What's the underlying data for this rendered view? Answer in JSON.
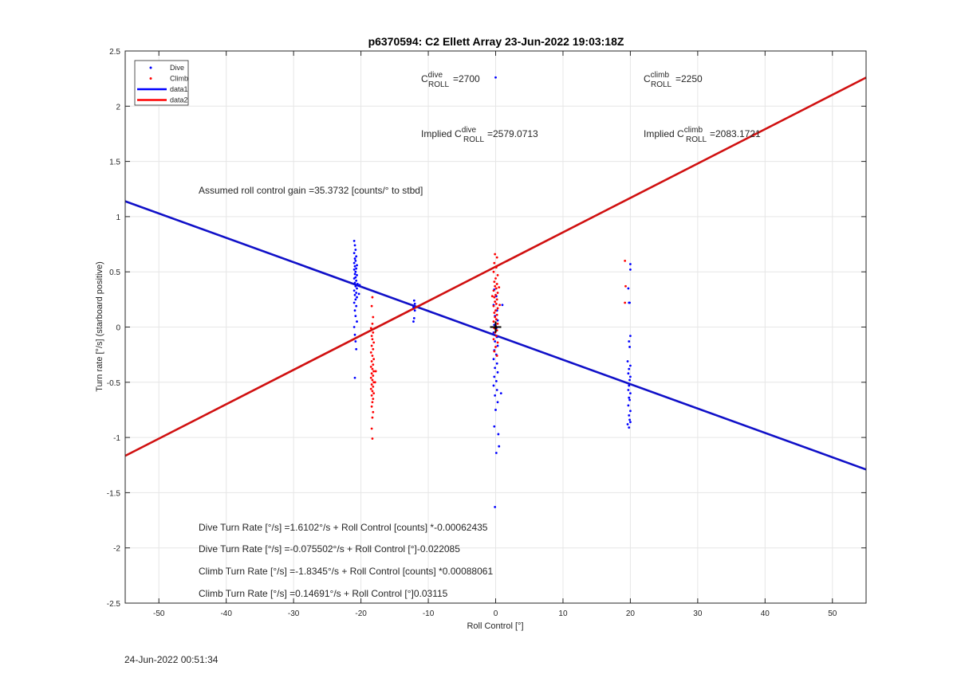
{
  "chart_data": {
    "type": "scatter",
    "title": "p6370594: C2 Ellett Array 23-Jun-2022 19:03:18Z",
    "xlabel": "Roll Control [°]",
    "ylabel": "Turn rate [°/s] (starboard positive)",
    "xlim": [
      -55,
      55
    ],
    "ylim": [
      -2.5,
      2.5
    ],
    "xticks": [
      -50,
      -40,
      -30,
      -20,
      -10,
      0,
      10,
      20,
      30,
      40,
      50
    ],
    "yticks": [
      -2.5,
      -2,
      -1.5,
      -1,
      -0.5,
      0,
      0.5,
      1,
      1.5,
      2,
      2.5
    ],
    "grid": true,
    "legend_position": "top-left",
    "legend": [
      {
        "label": "Dive",
        "kind": "marker",
        "color": "#0000ff"
      },
      {
        "label": "Climb",
        "kind": "marker",
        "color": "#ff0000"
      },
      {
        "label": "data1",
        "kind": "line",
        "color": "#0000ff"
      },
      {
        "label": "data2",
        "kind": "line",
        "color": "#ff0000"
      }
    ],
    "lines": [
      {
        "name": "data1",
        "color": "#1010c8",
        "x": [
          -55,
          55
        ],
        "y": [
          1.139,
          -1.29
        ]
      },
      {
        "name": "data2",
        "color": "#d01010",
        "x": [
          -55,
          55
        ],
        "y": [
          -1.166,
          2.259
        ]
      }
    ],
    "series": [
      {
        "name": "Dive",
        "color": "#0000ff",
        "points": [
          [
            -21.0,
            0.78
          ],
          [
            -20.9,
            0.74
          ],
          [
            -20.8,
            0.7
          ],
          [
            -21.0,
            0.67
          ],
          [
            -20.7,
            0.64
          ],
          [
            -20.9,
            0.62
          ],
          [
            -20.8,
            0.6
          ],
          [
            -21.0,
            0.58
          ],
          [
            -20.6,
            0.56
          ],
          [
            -20.9,
            0.55
          ],
          [
            -20.7,
            0.53
          ],
          [
            -21.0,
            0.52
          ],
          [
            -20.8,
            0.5
          ],
          [
            -20.9,
            0.48
          ],
          [
            -20.6,
            0.47
          ],
          [
            -20.8,
            0.45
          ],
          [
            -21.0,
            0.44
          ],
          [
            -20.7,
            0.42
          ],
          [
            -20.9,
            0.4
          ],
          [
            -20.5,
            0.39
          ],
          [
            -20.8,
            0.37
          ],
          [
            -20.6,
            0.35
          ],
          [
            -21.0,
            0.33
          ],
          [
            -20.7,
            0.31
          ],
          [
            -20.9,
            0.29
          ],
          [
            -20.6,
            0.27
          ],
          [
            -20.8,
            0.25
          ],
          [
            -21.0,
            0.22
          ],
          [
            -20.7,
            0.19
          ],
          [
            -20.9,
            0.15
          ],
          [
            -20.8,
            0.1
          ],
          [
            -20.6,
            0.05
          ],
          [
            -21.0,
            0.0
          ],
          [
            -20.9,
            -0.07
          ],
          [
            -20.8,
            -0.13
          ],
          [
            -20.7,
            -0.2
          ],
          [
            -20.9,
            -0.46
          ],
          [
            -20.2,
            0.38
          ],
          [
            -20.3,
            0.3
          ],
          [
            -12.1,
            0.24
          ],
          [
            -12.0,
            0.21
          ],
          [
            -12.2,
            0.18
          ],
          [
            -12.0,
            0.15
          ],
          [
            -12.1,
            0.08
          ],
          [
            -12.2,
            0.05
          ],
          [
            0.0,
            2.26
          ],
          [
            -0.2,
            0.34
          ],
          [
            0.1,
            0.28
          ],
          [
            -0.3,
            0.2
          ],
          [
            0.2,
            0.15
          ],
          [
            -0.1,
            0.1
          ],
          [
            0.3,
            0.06
          ],
          [
            -0.2,
            0.02
          ],
          [
            0.1,
            -0.01
          ],
          [
            -0.3,
            -0.05
          ],
          [
            0.2,
            -0.09
          ],
          [
            -0.1,
            -0.13
          ],
          [
            0.3,
            -0.17
          ],
          [
            -0.2,
            -0.21
          ],
          [
            0.1,
            -0.25
          ],
          [
            -0.3,
            -0.29
          ],
          [
            0.2,
            -0.33
          ],
          [
            -0.1,
            -0.37
          ],
          [
            0.3,
            -0.41
          ],
          [
            -0.2,
            -0.45
          ],
          [
            0.1,
            -0.49
          ],
          [
            -0.3,
            -0.53
          ],
          [
            0.2,
            -0.57
          ],
          [
            -0.1,
            -0.62
          ],
          [
            0.3,
            -0.68
          ],
          [
            0.0,
            -0.75
          ],
          [
            -0.2,
            -0.9
          ],
          [
            0.4,
            -0.97
          ],
          [
            0.5,
            -1.08
          ],
          [
            0.1,
            -1.14
          ],
          [
            -0.1,
            -1.63
          ],
          [
            1.0,
            0.2
          ],
          [
            0.8,
            -0.6
          ],
          [
            20.0,
            0.57
          ],
          [
            20.0,
            0.52
          ],
          [
            19.7,
            0.35
          ],
          [
            19.8,
            0.22
          ],
          [
            19.9,
            0.22
          ],
          [
            20.0,
            -0.08
          ],
          [
            19.8,
            -0.13
          ],
          [
            19.9,
            -0.18
          ],
          [
            19.6,
            -0.31
          ],
          [
            20.0,
            -0.35
          ],
          [
            19.8,
            -0.38
          ],
          [
            19.7,
            -0.42
          ],
          [
            20.0,
            -0.45
          ],
          [
            19.9,
            -0.48
          ],
          [
            19.8,
            -0.53
          ],
          [
            19.7,
            -0.57
          ],
          [
            20.0,
            -0.6
          ],
          [
            19.8,
            -0.64
          ],
          [
            19.9,
            -0.66
          ],
          [
            19.7,
            -0.71
          ],
          [
            20.0,
            -0.76
          ],
          [
            19.8,
            -0.8
          ],
          [
            19.9,
            -0.84
          ],
          [
            19.6,
            -0.88
          ],
          [
            19.8,
            -0.91
          ],
          [
            20.0,
            -0.86
          ]
        ]
      },
      {
        "name": "Climb",
        "color": "#ff0000",
        "points": [
          [
            -18.3,
            0.27
          ],
          [
            -18.4,
            0.19
          ],
          [
            -18.2,
            0.09
          ],
          [
            -18.3,
            0.03
          ],
          [
            -18.5,
            -0.01
          ],
          [
            -18.2,
            -0.05
          ],
          [
            -18.4,
            -0.08
          ],
          [
            -18.3,
            -0.11
          ],
          [
            -18.1,
            -0.14
          ],
          [
            -18.4,
            -0.17
          ],
          [
            -18.2,
            -0.2
          ],
          [
            -18.5,
            -0.23
          ],
          [
            -18.3,
            -0.26
          ],
          [
            -18.1,
            -0.29
          ],
          [
            -18.4,
            -0.31
          ],
          [
            -18.2,
            -0.34
          ],
          [
            -18.5,
            -0.36
          ],
          [
            -18.3,
            -0.38
          ],
          [
            -18.1,
            -0.4
          ],
          [
            -18.4,
            -0.42
          ],
          [
            -18.2,
            -0.44
          ],
          [
            -18.5,
            -0.46
          ],
          [
            -18.3,
            -0.48
          ],
          [
            -18.1,
            -0.5
          ],
          [
            -18.4,
            -0.52
          ],
          [
            -18.2,
            -0.54
          ],
          [
            -18.5,
            -0.56
          ],
          [
            -18.3,
            -0.58
          ],
          [
            -18.1,
            -0.6
          ],
          [
            -18.4,
            -0.62
          ],
          [
            -18.2,
            -0.65
          ],
          [
            -18.3,
            -0.68
          ],
          [
            -18.4,
            -0.72
          ],
          [
            -18.2,
            -0.77
          ],
          [
            -18.3,
            -0.82
          ],
          [
            -18.4,
            -0.92
          ],
          [
            -18.3,
            -1.01
          ],
          [
            -17.9,
            -0.5
          ],
          [
            -17.8,
            -0.4
          ],
          [
            -0.1,
            0.66
          ],
          [
            0.2,
            0.63
          ],
          [
            -0.2,
            0.58
          ],
          [
            0.1,
            0.54
          ],
          [
            -0.3,
            0.5
          ],
          [
            0.3,
            0.47
          ],
          [
            0.0,
            0.44
          ],
          [
            -0.2,
            0.41
          ],
          [
            0.2,
            0.39
          ],
          [
            -0.1,
            0.37
          ],
          [
            0.1,
            0.35
          ],
          [
            -0.3,
            0.33
          ],
          [
            0.3,
            0.31
          ],
          [
            0.0,
            0.29
          ],
          [
            -0.2,
            0.27
          ],
          [
            0.2,
            0.25
          ],
          [
            -0.1,
            0.23
          ],
          [
            0.1,
            0.21
          ],
          [
            -0.3,
            0.19
          ],
          [
            0.3,
            0.17
          ],
          [
            0.0,
            0.15
          ],
          [
            -0.2,
            0.13
          ],
          [
            0.2,
            0.11
          ],
          [
            -0.1,
            0.09
          ],
          [
            0.1,
            0.07
          ],
          [
            -0.3,
            0.05
          ],
          [
            0.3,
            0.03
          ],
          [
            0.0,
            0.01
          ],
          [
            -0.2,
            -0.01
          ],
          [
            0.2,
            -0.03
          ],
          [
            -0.1,
            -0.05
          ],
          [
            0.1,
            -0.08
          ],
          [
            -0.3,
            -0.11
          ],
          [
            0.3,
            -0.14
          ],
          [
            0.0,
            -0.18
          ],
          [
            -0.2,
            -0.22
          ],
          [
            0.2,
            -0.26
          ],
          [
            0.5,
            0.36
          ],
          [
            0.6,
            0.2
          ],
          [
            -0.5,
            0.28
          ],
          [
            19.2,
            0.6
          ],
          [
            19.3,
            0.37
          ],
          [
            19.2,
            0.22
          ]
        ]
      }
    ],
    "center_marker": {
      "x": 0,
      "y": 0,
      "symbol": "+"
    }
  },
  "annotations": {
    "c_dive_base": "C",
    "c_dive_sup": "dive",
    "c_dive_sub": "ROLL",
    "c_dive_val": "=2700",
    "c_climb_base": "C",
    "c_climb_sup": "climb",
    "c_climb_sub": "ROLL",
    "c_climb_val": "=2250",
    "implied_dive_prefix": "Implied C",
    "implied_dive_sup": "dive",
    "implied_dive_sub": "ROLL",
    "implied_dive_val": "=2579.0713",
    "implied_climb_prefix": "Implied C",
    "implied_climb_sup": "climb",
    "implied_climb_sub": "ROLL",
    "implied_climb_val": "=2083.1721",
    "gain": "Assumed roll control gain =35.3732 [counts/° to stbd]",
    "eq1": "Dive Turn Rate [°/s] =1.6102°/s + Roll Control [counts] *-0.00062435",
    "eq2": "Dive Turn Rate [°/s] =-0.075502°/s + Roll Control [°]-0.022085",
    "eq3": "Climb Turn Rate [°/s] =-1.8345°/s + Roll Control [counts] *0.00088061",
    "eq4": "Climb Turn Rate [°/s] =0.14691°/s + Roll Control [°]0.03115"
  },
  "footer_timestamp": "24-Jun-2022 00:51:34"
}
